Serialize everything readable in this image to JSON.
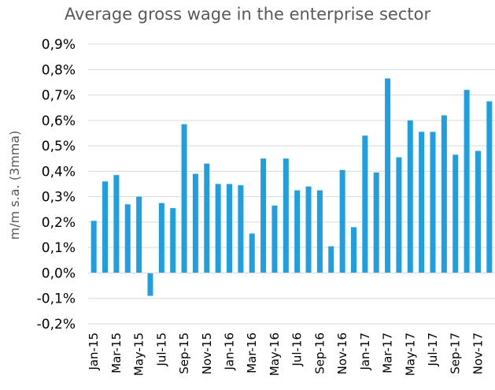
{
  "chart_data": {
    "type": "bar",
    "title": "Average gross wage in the enterprise sector",
    "xlabel": "",
    "ylabel": "m/m s.a. (3mma)",
    "ylim": [
      -0.2,
      0.9
    ],
    "yticks": [
      "-0,2%",
      "-0,1%",
      "0,0%",
      "0,1%",
      "0,2%",
      "0,3%",
      "0,4%",
      "0,5%",
      "0,6%",
      "0,7%",
      "0,8%",
      "0,9%"
    ],
    "grid": true,
    "legend": "none",
    "bar_color": "#1F9FE0",
    "categories": [
      "Jan-15",
      "Feb-15",
      "Mar-15",
      "Apr-15",
      "May-15",
      "Jun-15",
      "Jul-15",
      "Aug-15",
      "Sep-15",
      "Oct-15",
      "Nov-15",
      "Dec-15",
      "Jan-16",
      "Feb-16",
      "Mar-16",
      "Apr-16",
      "May-16",
      "Jun-16",
      "Jul-16",
      "Aug-16",
      "Sep-16",
      "Oct-16",
      "Nov-16",
      "Dec-16",
      "Jan-17",
      "Feb-17",
      "Mar-17",
      "Apr-17",
      "May-17",
      "Jun-17",
      "Jul-17",
      "Aug-17",
      "Sep-17",
      "Oct-17",
      "Nov-17",
      "Dec-17"
    ],
    "xtick_labels": [
      "Jan-15",
      "Mar-15",
      "May-15",
      "Jul-15",
      "Sep-15",
      "Nov-15",
      "Jan-16",
      "Mar-16",
      "May-16",
      "Jul-16",
      "Sep-16",
      "Nov-16",
      "Jan-17",
      "Mar-17",
      "May-17",
      "Jul-17",
      "Sep-17",
      "Nov-17"
    ],
    "values": [
      0.205,
      0.36,
      0.385,
      0.27,
      0.3,
      -0.09,
      0.275,
      0.255,
      0.585,
      0.39,
      0.43,
      0.35,
      0.35,
      0.345,
      0.155,
      0.45,
      0.265,
      0.45,
      0.325,
      0.34,
      0.325,
      0.105,
      0.405,
      0.18,
      0.54,
      0.395,
      0.765,
      0.455,
      0.6,
      0.555,
      0.555,
      0.62,
      0.465,
      0.72,
      0.48,
      0.675
    ]
  }
}
